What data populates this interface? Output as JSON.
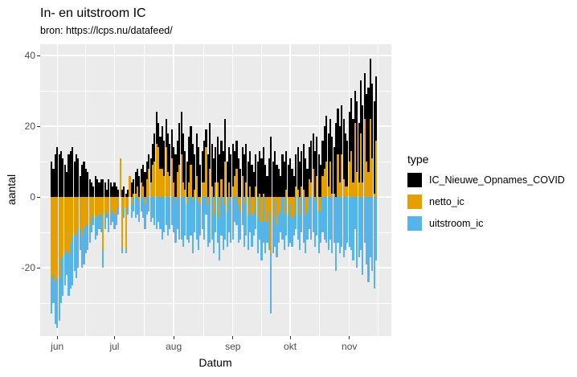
{
  "chart_data": {
    "type": "bar",
    "title": "In- en uitstroom IC",
    "subtitle": "bron: https://lcps.nu/datafeed/",
    "xlabel": "Datum",
    "ylabel": "aantal",
    "legend_title": "type",
    "legend_position": "right",
    "grid": true,
    "panel_bg": "#EBEBEB",
    "grid_color": "#FFFFFF",
    "tick_color": "#333333",
    "tick_label_color": "#4D4D4D",
    "ylim": [
      -39,
      43
    ],
    "y_major_ticks": [
      40,
      20,
      0,
      -20
    ],
    "y_minor_gridlines": [
      30,
      10,
      -10,
      -30
    ],
    "x_tick_labels": [
      "jun",
      "jul",
      "aug",
      "sep",
      "okt",
      "nov"
    ],
    "start_date": "2021-05-29",
    "end_date": "2021-11-15",
    "bar_mode": "overlay; netto_ic = IC_Nieuwe_Opnames_COVID + uitstroom_ic",
    "month_start_indices": [
      3,
      33,
      64,
      95,
      125,
      156
    ],
    "series": [
      {
        "name": "IC_Nieuwe_Opnames_COVID",
        "color": "#000000",
        "values": [
          10,
          8,
          12,
          14,
          12,
          13,
          11,
          9,
          7,
          12,
          13,
          14,
          10,
          12,
          11,
          6,
          9,
          10,
          8,
          7,
          5,
          4,
          3,
          6,
          5,
          4,
          5,
          5,
          4,
          2,
          5,
          4,
          3,
          4,
          3,
          2,
          11,
          2,
          3,
          1,
          2,
          6,
          4,
          5,
          7,
          8,
          6,
          8,
          9,
          7,
          10,
          12,
          11,
          15,
          18,
          24,
          21,
          17,
          20,
          16,
          22,
          18,
          15,
          19,
          14,
          12,
          16,
          21,
          24,
          18,
          13,
          10,
          17,
          20,
          15,
          12,
          18,
          14,
          9,
          13,
          16,
          19,
          12,
          21,
          15,
          11,
          14,
          17,
          12,
          16,
          13,
          22,
          10,
          14,
          12,
          15,
          13,
          16,
          11,
          8,
          14,
          12,
          15,
          10,
          13,
          9,
          7,
          12,
          10,
          13,
          11,
          14,
          9,
          6,
          11,
          17,
          10,
          13,
          9,
          8,
          6,
          12,
          10,
          13,
          9,
          11,
          8,
          6,
          12,
          14,
          10,
          13,
          15,
          11,
          8,
          14,
          16,
          18,
          13,
          17,
          12,
          9,
          16,
          20,
          23,
          18,
          22,
          17,
          14,
          21,
          25,
          20,
          26,
          22,
          18,
          16,
          24,
          28,
          22,
          30,
          27,
          21,
          33,
          26,
          35,
          29,
          31,
          39,
          32,
          27,
          34
        ]
      },
      {
        "name": "netto_ic",
        "color": "#E69F00",
        "values": [
          -23,
          -22,
          -24,
          -23,
          -23,
          -17,
          -17,
          -16,
          -15,
          -16,
          -13,
          -11,
          -11,
          -11,
          -9,
          -9,
          -11,
          -9,
          -8,
          -8,
          -8,
          -6,
          -5,
          -6,
          -6,
          -5,
          -5,
          -15,
          -5,
          -4,
          -5,
          -4,
          -4,
          -5,
          -5,
          -3,
          11,
          -14,
          -3,
          -15,
          -3,
          6,
          -2,
          1,
          1,
          3,
          -1,
          4,
          3,
          -2,
          5,
          8,
          4,
          9,
          10,
          15,
          14,
          8,
          8,
          6,
          14,
          7,
          6,
          11,
          4,
          -1,
          7,
          9,
          12,
          4,
          2,
          -2,
          4,
          9,
          -1,
          2,
          6,
          -1,
          -2,
          4,
          4,
          14,
          -2,
          8,
          3,
          -5,
          4,
          4,
          -6,
          5,
          -2,
          10,
          -4,
          4,
          -1,
          3,
          6,
          8,
          -2,
          -4,
          6,
          -2,
          4,
          -5,
          3,
          -5,
          -4,
          3,
          -6,
          1,
          -7,
          1,
          -7,
          -7,
          -4,
          -16,
          -6,
          -1,
          -8,
          -5,
          -4,
          0,
          -5,
          2,
          -5,
          -2,
          -6,
          -5,
          3,
          2,
          -5,
          3,
          2,
          -5,
          -4,
          5,
          4,
          8,
          -1,
          6,
          -4,
          -4,
          6,
          8,
          10,
          3,
          10,
          1,
          1,
          0,
          12,
          4,
          12,
          5,
          3,
          3,
          10,
          13,
          4,
          21,
          7,
          4,
          18,
          4,
          22,
          10,
          7,
          22,
          11,
          1,
          16
        ]
      },
      {
        "name": "uitstroom_ic",
        "color": "#56B4E9",
        "values": [
          -33,
          -30,
          -36,
          -37,
          -35,
          -30,
          -28,
          -25,
          -22,
          -28,
          -26,
          -25,
          -21,
          -23,
          -20,
          -15,
          -20,
          -19,
          -16,
          -15,
          -13,
          -10,
          -8,
          -12,
          -11,
          -9,
          -10,
          -20,
          -9,
          -6,
          -10,
          -8,
          -7,
          -9,
          -8,
          -5,
          0,
          -16,
          -6,
          -16,
          -5,
          0,
          -6,
          -4,
          -6,
          -5,
          -7,
          -4,
          -6,
          -9,
          -5,
          -4,
          -7,
          -6,
          -8,
          -9,
          -7,
          -9,
          -12,
          -10,
          -8,
          -11,
          -9,
          -8,
          -10,
          -13,
          -9,
          -12,
          -12,
          -14,
          -11,
          -12,
          -13,
          -11,
          -16,
          -10,
          -12,
          -15,
          -11,
          -9,
          -12,
          -5,
          -14,
          -13,
          -12,
          -16,
          -10,
          -13,
          -18,
          -11,
          -15,
          -12,
          -14,
          -10,
          -13,
          -12,
          -7,
          -8,
          -13,
          -12,
          -8,
          -14,
          -11,
          -15,
          -10,
          -14,
          -11,
          -9,
          -16,
          -12,
          -18,
          -13,
          -16,
          -13,
          -15,
          -33,
          -16,
          -14,
          -17,
          -13,
          -10,
          -12,
          -15,
          -11,
          -14,
          -13,
          -14,
          -11,
          -9,
          -12,
          -15,
          -10,
          -13,
          -16,
          -12,
          -9,
          -12,
          -10,
          -14,
          -11,
          -16,
          -13,
          -10,
          -12,
          -13,
          -15,
          -12,
          -16,
          -13,
          -21,
          -13,
          -16,
          -14,
          -17,
          -15,
          -13,
          -14,
          -15,
          -18,
          -9,
          -20,
          -17,
          -15,
          -22,
          -13,
          -19,
          -24,
          -17,
          -21,
          -26,
          -18
        ]
      }
    ]
  }
}
